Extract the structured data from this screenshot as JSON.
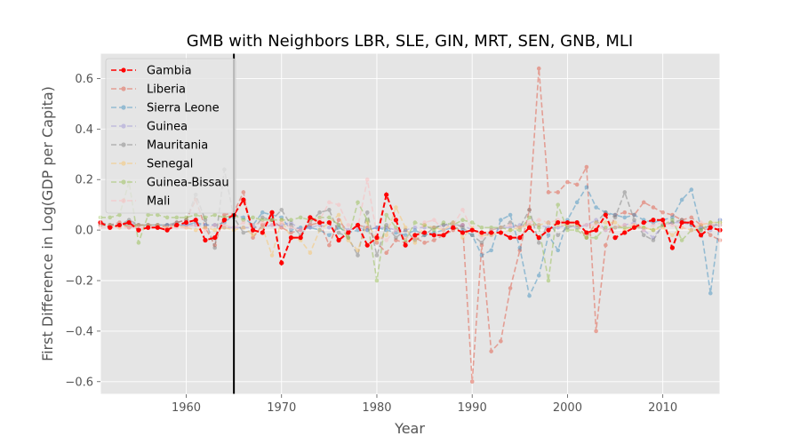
{
  "chart_data": {
    "type": "line",
    "title": "GMB with Neighbors LBR, SLE, GIN, MRT, SEN, GNB, MLI",
    "xlabel": "Year",
    "ylabel": "First Difference in Log(GDP per Capita)",
    "xlim": [
      1951,
      2016
    ],
    "ylim": [
      -0.65,
      0.7
    ],
    "x_ticks": [
      1960,
      1970,
      1980,
      1990,
      2000,
      2010
    ],
    "y_ticks": [
      -0.6,
      -0.4,
      -0.2,
      0.0,
      0.2,
      0.4,
      0.6
    ],
    "y_tick_labels": [
      "−0.6",
      "−0.4",
      "−0.2",
      "0.0",
      "0.2",
      "0.4",
      "0.6"
    ],
    "grid": true,
    "legend_position": "top-left",
    "vline": {
      "x": 1965,
      "color": "#000000"
    },
    "series": [
      {
        "name": "Gambia",
        "color": "#ff0000",
        "opacity": 1.0,
        "emphasis": true,
        "x": [
          1951,
          1952,
          1953,
          1954,
          1955,
          1956,
          1957,
          1958,
          1959,
          1960,
          1961,
          1962,
          1963,
          1964,
          1965,
          1966,
          1967,
          1968,
          1969,
          1970,
          1971,
          1972,
          1973,
          1974,
          1975,
          1976,
          1977,
          1978,
          1979,
          1980,
          1981,
          1982,
          1983,
          1984,
          1985,
          1986,
          1987,
          1988,
          1989,
          1990,
          1991,
          1992,
          1993,
          1994,
          1995,
          1996,
          1997,
          1998,
          1999,
          2000,
          2001,
          2002,
          2003,
          2004,
          2005,
          2006,
          2007,
          2008,
          2009,
          2010,
          2011,
          2012,
          2013,
          2014,
          2015,
          2016
        ],
        "values": [
          0.03,
          0.01,
          0.02,
          0.03,
          0.0,
          0.01,
          0.01,
          0.0,
          0.02,
          0.03,
          0.04,
          -0.04,
          -0.03,
          0.04,
          0.06,
          0.12,
          0.0,
          -0.01,
          0.07,
          -0.13,
          -0.03,
          -0.03,
          0.05,
          0.03,
          0.03,
          -0.04,
          -0.01,
          0.02,
          -0.06,
          -0.03,
          0.14,
          0.04,
          -0.06,
          -0.02,
          -0.01,
          -0.02,
          -0.02,
          0.01,
          -0.01,
          0.0,
          -0.01,
          -0.01,
          -0.01,
          -0.03,
          -0.03,
          0.01,
          -0.03,
          0.0,
          0.03,
          0.03,
          0.03,
          -0.01,
          0.0,
          0.06,
          -0.03,
          -0.01,
          0.01,
          0.03,
          0.04,
          0.04,
          -0.07,
          0.03,
          0.03,
          -0.02,
          0.01,
          0.0
        ]
      },
      {
        "name": "Liberia",
        "color": "#e24a33",
        "opacity": 0.45,
        "x": [
          1951,
          1952,
          1953,
          1954,
          1955,
          1956,
          1957,
          1958,
          1959,
          1960,
          1961,
          1962,
          1963,
          1964,
          1965,
          1966,
          1967,
          1968,
          1969,
          1970,
          1971,
          1972,
          1973,
          1974,
          1975,
          1976,
          1977,
          1978,
          1979,
          1980,
          1981,
          1982,
          1983,
          1984,
          1985,
          1986,
          1987,
          1988,
          1989,
          1990,
          1991,
          1992,
          1993,
          1994,
          1995,
          1996,
          1997,
          1998,
          1999,
          2000,
          2001,
          2002,
          2003,
          2004,
          2005,
          2006,
          2007,
          2008,
          2009,
          2010,
          2011,
          2012,
          2013,
          2014,
          2015,
          2016
        ],
        "values": [
          0.02,
          0.02,
          0.03,
          0.01,
          0.02,
          0.02,
          0.02,
          0.01,
          0.03,
          0.04,
          0.12,
          0.01,
          -0.06,
          0.06,
          0.07,
          0.15,
          -0.03,
          0.02,
          0.04,
          0.01,
          -0.01,
          0.0,
          0.02,
          0.03,
          -0.06,
          0.04,
          -0.01,
          0.02,
          0.01,
          -0.05,
          -0.09,
          -0.04,
          -0.05,
          -0.03,
          -0.05,
          -0.04,
          -0.02,
          0.0,
          0.02,
          -0.6,
          -0.06,
          -0.48,
          -0.44,
          -0.23,
          -0.08,
          0.08,
          0.64,
          0.15,
          0.15,
          0.19,
          0.18,
          0.25,
          -0.4,
          -0.06,
          0.06,
          0.07,
          0.06,
          0.11,
          0.09,
          0.07,
          0.06,
          0.04,
          0.05,
          0.02,
          -0.02,
          -0.04
        ]
      },
      {
        "name": "Sierra Leone",
        "color": "#348abd",
        "opacity": 0.45,
        "x": [
          1951,
          1952,
          1953,
          1954,
          1955,
          1956,
          1957,
          1958,
          1959,
          1960,
          1961,
          1962,
          1963,
          1964,
          1965,
          1966,
          1967,
          1968,
          1969,
          1970,
          1971,
          1972,
          1973,
          1974,
          1975,
          1976,
          1977,
          1978,
          1979,
          1980,
          1981,
          1982,
          1983,
          1984,
          1985,
          1986,
          1987,
          1988,
          1989,
          1990,
          1991,
          1992,
          1993,
          1994,
          1995,
          1996,
          1997,
          1998,
          1999,
          2000,
          2001,
          2002,
          2003,
          2004,
          2005,
          2006,
          2007,
          2008,
          2009,
          2010,
          2011,
          2012,
          2013,
          2014,
          2015,
          2016
        ],
        "values": [
          0.02,
          0.02,
          0.02,
          0.02,
          0.02,
          0.02,
          0.02,
          0.02,
          0.02,
          0.02,
          0.03,
          0.02,
          0.02,
          0.03,
          0.06,
          0.05,
          0.02,
          0.07,
          0.06,
          0.05,
          0.0,
          0.01,
          0.01,
          0.0,
          -0.02,
          0.01,
          -0.01,
          0.0,
          0.0,
          0.01,
          0.0,
          -0.01,
          -0.02,
          0.0,
          -0.02,
          -0.01,
          0.0,
          0.01,
          0.0,
          -0.02,
          -0.1,
          -0.08,
          0.04,
          0.06,
          -0.07,
          -0.26,
          -0.18,
          -0.02,
          -0.08,
          0.04,
          0.11,
          0.17,
          0.09,
          0.07,
          0.06,
          0.05,
          0.06,
          0.04,
          0.03,
          0.04,
          0.05,
          0.12,
          0.16,
          0.01,
          -0.25,
          0.04
        ]
      },
      {
        "name": "Guinea",
        "color": "#988ed5",
        "opacity": 0.45,
        "x": [
          1951,
          1952,
          1953,
          1954,
          1955,
          1956,
          1957,
          1958,
          1959,
          1960,
          1961,
          1962,
          1963,
          1964,
          1965,
          1966,
          1967,
          1968,
          1969,
          1970,
          1971,
          1972,
          1973,
          1974,
          1975,
          1976,
          1977,
          1978,
          1979,
          1980,
          1981,
          1982,
          1983,
          1984,
          1985,
          1986,
          1987,
          1988,
          1989,
          1990,
          1991,
          1992,
          1993,
          1994,
          1995,
          1996,
          1997,
          1998,
          1999,
          2000,
          2001,
          2002,
          2003,
          2004,
          2005,
          2006,
          2007,
          2008,
          2009,
          2010,
          2011,
          2012,
          2013,
          2014,
          2015,
          2016
        ],
        "values": [
          0.02,
          0.02,
          0.02,
          0.03,
          0.02,
          0.02,
          0.02,
          0.02,
          0.02,
          0.02,
          0.02,
          0.02,
          0.02,
          0.01,
          0.01,
          0.01,
          0.01,
          0.01,
          0.02,
          0.02,
          0.03,
          0.0,
          0.01,
          0.02,
          0.01,
          0.02,
          0.0,
          0.01,
          0.0,
          0.01,
          0.01,
          0.0,
          0.0,
          0.01,
          0.01,
          0.01,
          0.02,
          0.02,
          0.02,
          0.0,
          -0.01,
          -0.02,
          0.01,
          0.01,
          0.02,
          0.02,
          0.02,
          0.01,
          0.01,
          0.02,
          0.01,
          0.02,
          0.04,
          0.0,
          0.01,
          0.02,
          0.03,
          0.0,
          -0.03,
          0.02,
          0.03,
          0.03,
          0.02,
          0.01,
          0.0,
          0.04
        ]
      },
      {
        "name": "Mauritania",
        "color": "#777777",
        "opacity": 0.45,
        "x": [
          1951,
          1952,
          1953,
          1954,
          1955,
          1956,
          1957,
          1958,
          1959,
          1960,
          1961,
          1962,
          1963,
          1964,
          1965,
          1966,
          1967,
          1968,
          1969,
          1970,
          1971,
          1972,
          1973,
          1974,
          1975,
          1976,
          1977,
          1978,
          1979,
          1980,
          1981,
          1982,
          1983,
          1984,
          1985,
          1986,
          1987,
          1988,
          1989,
          1990,
          1991,
          1992,
          1993,
          1994,
          1995,
          1996,
          1997,
          1998,
          1999,
          2000,
          2001,
          2002,
          2003,
          2004,
          2005,
          2006,
          2007,
          2008,
          2009,
          2010,
          2011,
          2012,
          2013,
          2014,
          2015,
          2016
        ],
        "values": [
          0.03,
          0.02,
          0.02,
          0.04,
          0.02,
          0.02,
          0.02,
          0.02,
          0.03,
          0.04,
          0.14,
          0.04,
          -0.07,
          0.24,
          0.05,
          -0.01,
          0.0,
          0.05,
          0.04,
          0.08,
          0.02,
          -0.02,
          0.03,
          0.07,
          0.08,
          -0.01,
          -0.03,
          -0.1,
          0.07,
          -0.1,
          0.02,
          -0.03,
          0.0,
          -0.04,
          -0.02,
          0.01,
          0.02,
          0.03,
          0.01,
          -0.02,
          -0.05,
          0.0,
          0.01,
          0.03,
          0.01,
          0.08,
          -0.05,
          0.03,
          -0.02,
          0.01,
          0.02,
          -0.03,
          0.03,
          0.07,
          0.05,
          0.15,
          0.04,
          -0.02,
          -0.04,
          0.02,
          0.03,
          0.04,
          0.02,
          0.0,
          0.02,
          0.02
        ]
      },
      {
        "name": "Senegal",
        "color": "#fbc15e",
        "opacity": 0.45,
        "x": [
          1951,
          1952,
          1953,
          1954,
          1955,
          1956,
          1957,
          1958,
          1959,
          1960,
          1961,
          1962,
          1963,
          1964,
          1965,
          1966,
          1967,
          1968,
          1969,
          1970,
          1971,
          1972,
          1973,
          1974,
          1975,
          1976,
          1977,
          1978,
          1979,
          1980,
          1981,
          1982,
          1983,
          1984,
          1985,
          1986,
          1987,
          1988,
          1989,
          1990,
          1991,
          1992,
          1993,
          1994,
          1995,
          1996,
          1997,
          1998,
          1999,
          2000,
          2001,
          2002,
          2003,
          2004,
          2005,
          2006,
          2007,
          2008,
          2009,
          2010,
          2011,
          2012,
          2013,
          2014,
          2015,
          2016
        ],
        "values": [
          0.02,
          0.02,
          0.01,
          0.02,
          0.02,
          0.02,
          0.02,
          0.01,
          0.02,
          0.01,
          0.0,
          0.01,
          0.0,
          0.01,
          0.0,
          0.01,
          -0.02,
          0.01,
          -0.1,
          0.04,
          -0.03,
          -0.04,
          -0.09,
          0.0,
          0.03,
          0.06,
          -0.04,
          -0.08,
          0.03,
          -0.04,
          -0.02,
          0.09,
          0.01,
          -0.05,
          0.02,
          0.01,
          0.0,
          0.03,
          -0.03,
          0.01,
          -0.02,
          -0.02,
          -0.01,
          0.0,
          0.01,
          0.02,
          0.02,
          0.03,
          0.02,
          0.02,
          0.02,
          -0.03,
          0.03,
          0.03,
          0.03,
          0.0,
          0.02,
          0.01,
          0.0,
          0.01,
          -0.02,
          0.01,
          0.0,
          0.02,
          0.03,
          0.03
        ]
      },
      {
        "name": "Guinea-Bissau",
        "color": "#8eba42",
        "opacity": 0.45,
        "x": [
          1951,
          1952,
          1953,
          1954,
          1955,
          1956,
          1957,
          1958,
          1959,
          1960,
          1961,
          1962,
          1963,
          1964,
          1965,
          1966,
          1967,
          1968,
          1969,
          1970,
          1971,
          1972,
          1973,
          1974,
          1975,
          1976,
          1977,
          1978,
          1979,
          1980,
          1981,
          1982,
          1983,
          1984,
          1985,
          1986,
          1987,
          1988,
          1989,
          1990,
          1991,
          1992,
          1993,
          1994,
          1995,
          1996,
          1997,
          1998,
          1999,
          2000,
          2001,
          2002,
          2003,
          2004,
          2005,
          2006,
          2007,
          2008,
          2009,
          2010,
          2011,
          2012,
          2013,
          2014,
          2015,
          2016
        ],
        "values": [
          0.05,
          0.05,
          0.06,
          0.19,
          -0.05,
          0.06,
          0.06,
          0.05,
          0.05,
          0.05,
          0.06,
          0.05,
          0.06,
          0.05,
          0.06,
          0.04,
          0.05,
          0.04,
          0.04,
          0.04,
          0.04,
          0.05,
          0.04,
          0.05,
          0.05,
          0.02,
          -0.03,
          0.11,
          0.04,
          -0.2,
          0.06,
          0.01,
          -0.04,
          0.03,
          0.02,
          0.0,
          0.03,
          0.02,
          0.04,
          0.03,
          0.01,
          0.01,
          0.01,
          0.0,
          0.0,
          0.05,
          0.01,
          -0.2,
          0.1,
          0.0,
          0.0,
          -0.03,
          -0.03,
          0.01,
          0.01,
          0.01,
          0.01,
          0.01,
          0.0,
          0.02,
          0.04,
          -0.04,
          0.0,
          0.0,
          0.03,
          0.03
        ]
      },
      {
        "name": "Mali",
        "color": "#ffb5b8",
        "opacity": 0.45,
        "x": [
          1951,
          1952,
          1953,
          1954,
          1955,
          1956,
          1957,
          1958,
          1959,
          1960,
          1961,
          1962,
          1963,
          1964,
          1965,
          1966,
          1967,
          1968,
          1969,
          1970,
          1971,
          1972,
          1973,
          1974,
          1975,
          1976,
          1977,
          1978,
          1979,
          1980,
          1981,
          1982,
          1983,
          1984,
          1985,
          1986,
          1987,
          1988,
          1989,
          1990,
          1991,
          1992,
          1993,
          1994,
          1995,
          1996,
          1997,
          1998,
          1999,
          2000,
          2001,
          2002,
          2003,
          2004,
          2005,
          2006,
          2007,
          2008,
          2009,
          2010,
          2011,
          2012,
          2013,
          2014,
          2015,
          2016
        ],
        "values": [
          0.01,
          0.01,
          0.01,
          0.01,
          0.01,
          0.01,
          0.01,
          0.01,
          0.01,
          0.01,
          0.02,
          0.0,
          0.02,
          0.02,
          0.01,
          0.03,
          0.02,
          0.03,
          0.02,
          0.03,
          0.01,
          0.0,
          0.03,
          0.04,
          0.11,
          0.1,
          0.02,
          0.01,
          0.2,
          -0.02,
          -0.04,
          0.0,
          -0.03,
          -0.03,
          0.03,
          0.04,
          0.0,
          0.02,
          0.08,
          0.0,
          -0.03,
          0.0,
          0.01,
          0.02,
          0.01,
          0.03,
          0.04,
          0.03,
          0.04,
          0.03,
          0.03,
          0.02,
          0.02,
          0.0,
          0.01,
          0.02,
          0.02,
          0.0,
          0.02,
          0.03,
          0.02,
          0.01,
          0.0,
          0.03,
          0.02,
          0.02
        ]
      }
    ]
  }
}
